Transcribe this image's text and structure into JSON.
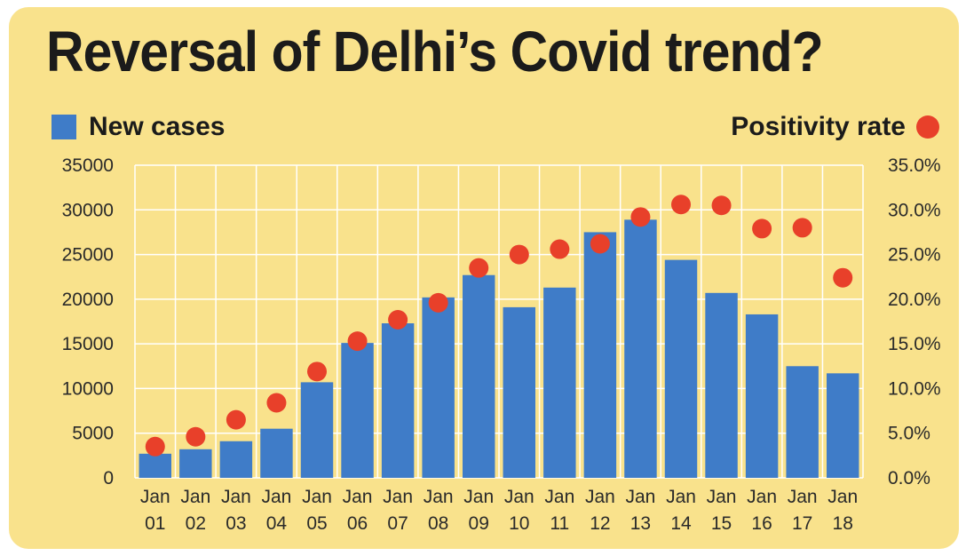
{
  "chart_data": {
    "type": "bar",
    "title": "Reversal of Delhi’s Covid trend?",
    "categories": [
      [
        "Jan",
        "01"
      ],
      [
        "Jan",
        "02"
      ],
      [
        "Jan",
        "03"
      ],
      [
        "Jan",
        "04"
      ],
      [
        "Jan",
        "05"
      ],
      [
        "Jan",
        "06"
      ],
      [
        "Jan",
        "07"
      ],
      [
        "Jan",
        "08"
      ],
      [
        "Jan",
        "09"
      ],
      [
        "Jan",
        "10"
      ],
      [
        "Jan",
        "11"
      ],
      [
        "Jan",
        "12"
      ],
      [
        "Jan",
        "13"
      ],
      [
        "Jan",
        "14"
      ],
      [
        "Jan",
        "15"
      ],
      [
        "Jan",
        "16"
      ],
      [
        "Jan",
        "17"
      ],
      [
        "Jan",
        "18"
      ]
    ],
    "series": [
      {
        "name": "New cases",
        "type": "bar",
        "axis": "left",
        "values": [
          2700,
          3200,
          4100,
          5500,
          10700,
          15100,
          17300,
          20200,
          22700,
          19100,
          21300,
          27500,
          28900,
          24400,
          20700,
          18300,
          12500,
          11700
        ]
      },
      {
        "name": "Positivity rate",
        "type": "scatter",
        "axis": "right",
        "values": [
          3.5,
          4.6,
          6.5,
          8.4,
          11.9,
          15.3,
          17.7,
          19.6,
          23.5,
          25.0,
          25.6,
          26.2,
          29.2,
          30.6,
          30.5,
          27.9,
          28.0,
          22.4
        ]
      }
    ],
    "y_left": {
      "ylim": [
        0,
        35000
      ],
      "ticks": [
        "0",
        "5000",
        "10000",
        "15000",
        "20000",
        "25000",
        "30000",
        "35000"
      ]
    },
    "y_right": {
      "ylim": [
        0,
        35
      ],
      "ticks": [
        "0.0%",
        "5.0%",
        "10.0%",
        "15.0%",
        "20.0%",
        "25.0%",
        "30.0%",
        "35.0%"
      ]
    },
    "grid": true,
    "legend": {
      "left_label": "New cases",
      "right_label": "Positivity rate"
    }
  },
  "colors": {
    "background": "#f9e28c",
    "bar": "#3f7cc8",
    "dot": "#e8402a",
    "grid": "#ffffff",
    "text": "#1b1b1b"
  }
}
